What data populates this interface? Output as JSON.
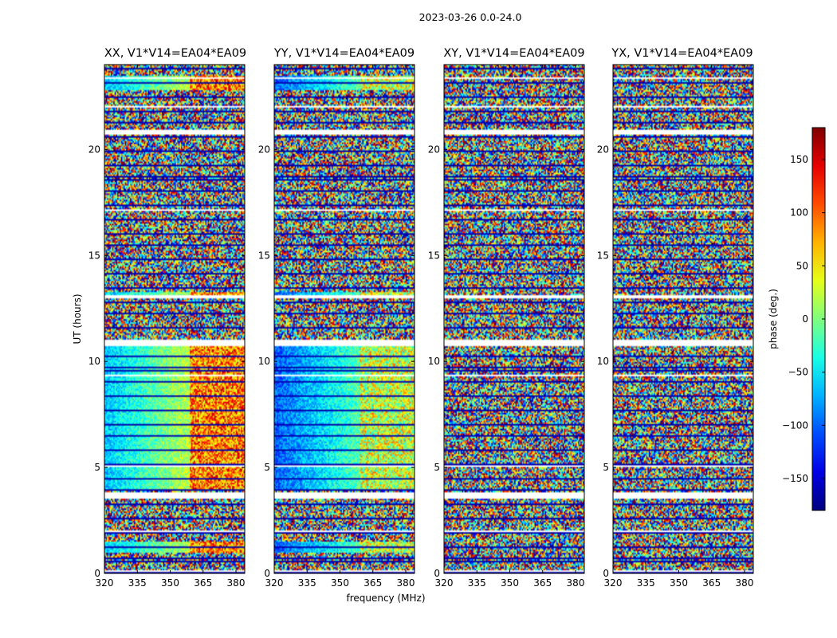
{
  "chart_data": {
    "type": "heatmap",
    "title": "2023-03-26 0.0-24.0",
    "xlabel": "frequency (MHz)",
    "ylabel": "UT (hours)",
    "xlim": [
      320,
      384
    ],
    "ylim": [
      0,
      24
    ],
    "x_ticks": [
      320,
      335,
      350,
      365,
      380
    ],
    "y_ticks": [
      0,
      5,
      10,
      15,
      20
    ],
    "panels": [
      {
        "title": "XX, V1*V14=EA04*EA09",
        "pattern": "parallel",
        "coherence": 0.9,
        "bias": 0.0
      },
      {
        "title": "YY, V1*V14=EA04*EA09",
        "pattern": "parallel",
        "coherence": 1.0,
        "bias": -0.35
      },
      {
        "title": "XY, V1*V14=EA04*EA09",
        "pattern": "cross",
        "coherence": 0.0,
        "bias": 0.0
      },
      {
        "title": "YX, V1*V14=EA04*EA09",
        "pattern": "cross",
        "coherence": 0.0,
        "bias": 0.0
      }
    ],
    "colorbar": {
      "label": "phase (deg.)",
      "range": [
        -180,
        180
      ],
      "ticks": [
        -150,
        -100,
        -50,
        0,
        50,
        100,
        150
      ],
      "colormap": "jet"
    },
    "gap_hours": [
      [
        0.05,
        0.12
      ],
      [
        1.95,
        2.05
      ],
      [
        3.55,
        3.8
      ],
      [
        5.05,
        5.12
      ],
      [
        9.3,
        9.38
      ],
      [
        10.75,
        11.0
      ],
      [
        12.95,
        13.15
      ],
      [
        14.3,
        14.36
      ],
      [
        17.1,
        17.2
      ],
      [
        20.7,
        20.95
      ],
      [
        22.0,
        22.07
      ],
      [
        23.3,
        23.38
      ]
    ],
    "coherent_hours": [
      [
        1.0,
        1.5
      ],
      [
        3.9,
        10.7
      ],
      [
        13.0,
        13.3
      ],
      [
        22.8,
        23.5
      ]
    ]
  }
}
